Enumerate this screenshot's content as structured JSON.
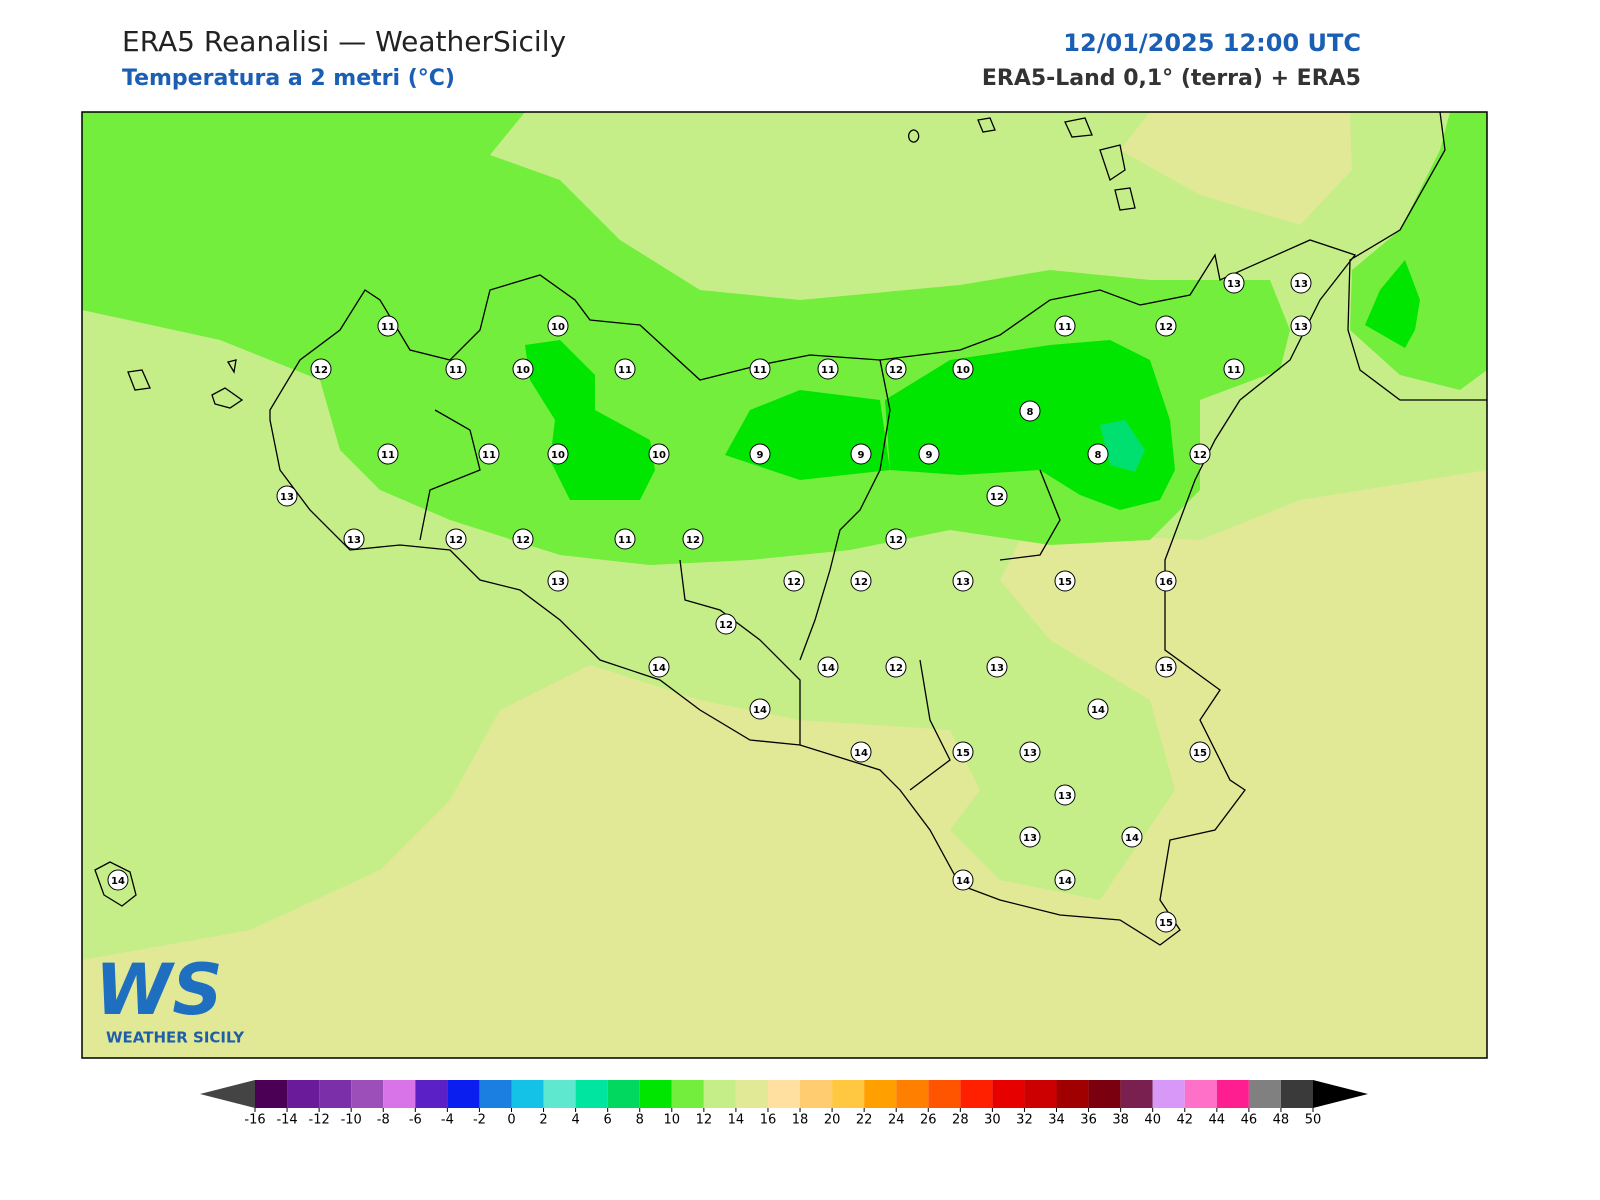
{
  "header": {
    "title": "ERA5 Reanalisi — WeatherSicily",
    "subtitle": "Temperatura a 2 metri (°C)",
    "date": "12/01/2025 12:00 UTC",
    "source": "ERA5-Land 0,1° (terra) + ERA5"
  },
  "station_values": [
    11,
    10,
    12,
    11,
    10,
    11,
    11,
    11,
    12,
    10,
    11,
    12,
    13,
    13,
    13,
    11,
    8,
    11,
    11,
    10,
    10,
    9,
    9,
    9,
    8,
    12,
    13,
    12,
    13,
    12,
    12,
    11,
    12,
    12,
    13,
    12,
    12,
    13,
    15,
    16,
    12,
    14,
    14,
    12,
    13,
    15,
    14,
    14,
    14,
    15,
    13,
    15,
    13,
    13,
    14,
    14,
    14,
    14,
    15
  ],
  "colorbar": {
    "ticks": [
      -16,
      -14,
      -12,
      -10,
      -8,
      -6,
      -4,
      -2,
      0,
      2,
      4,
      6,
      8,
      10,
      12,
      14,
      16,
      18,
      20,
      22,
      24,
      26,
      28,
      30,
      32,
      34,
      36,
      38,
      40,
      42,
      44,
      46,
      48,
      50
    ],
    "colors": [
      "#4b0055",
      "#6a1b9a",
      "#7b2fa8",
      "#9c4fb8",
      "#d873e8",
      "#5b21c6",
      "#0a1ef0",
      "#1a7fe0",
      "#13c2e6",
      "#5ee8cf",
      "#00e5a0",
      "#00d860",
      "#00e600",
      "#73ee3c",
      "#c5ee88",
      "#e1e896",
      "#ffe0a0",
      "#ffcc70",
      "#ffc840",
      "#ffa000",
      "#ff7f00",
      "#ff5500",
      "#ff2000",
      "#e60000",
      "#cc0000",
      "#a00000",
      "#7a0010",
      "#7a2050",
      "#d898f8",
      "#ff70c8",
      "#ff1e90",
      "#808080",
      "#3a3a3a"
    ],
    "under_color": "#444444",
    "over_color": "#000000"
  },
  "logo": {
    "letters": "WS",
    "text": "WEATHER SICILY"
  }
}
